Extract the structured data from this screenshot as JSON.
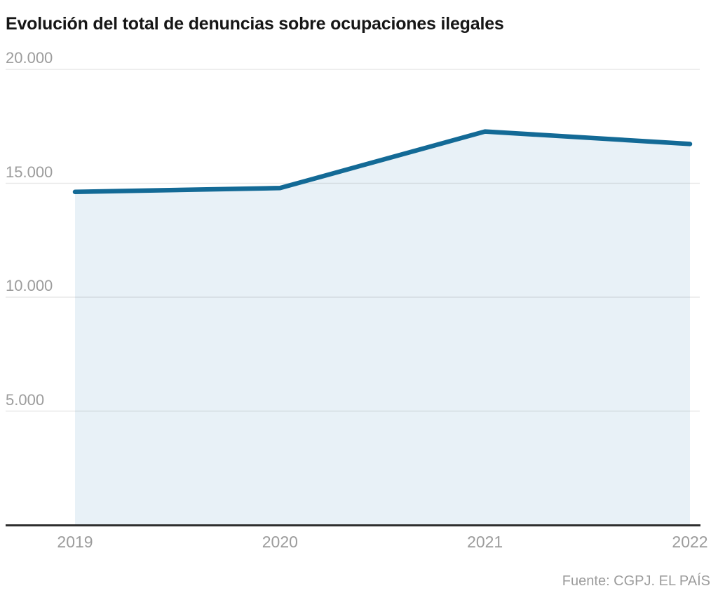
{
  "title": "Evolución del total de denuncias sobre ocupaciones ilegales",
  "source": "Fuente: CGPJ. EL PAÍS",
  "colors": {
    "line": "#136a96",
    "area_fill": "#e8f1f7",
    "grid_line": "rgba(0,0,0,0.09)",
    "axis_line": "#2e2e2e",
    "tick_text": "#9c9c9c",
    "title_text": "#161616"
  },
  "chart_data": {
    "type": "area",
    "title": "Evolución del total de denuncias sobre ocupaciones ilegales",
    "x": [
      2019,
      2020,
      2021,
      2022
    ],
    "xtick_labels": [
      "2019",
      "2020",
      "2021",
      "2022"
    ],
    "values": [
      14621,
      14792,
      17274,
      16726
    ],
    "series_name": "Total de denuncias sobre ocupaciones ilegales",
    "xlabel": "",
    "ylabel": "",
    "ylim": [
      0,
      20000
    ],
    "yticks": [
      {
        "value": 20000,
        "label": "20.000"
      },
      {
        "value": 15000,
        "label": "15.000"
      },
      {
        "value": 10000,
        "label": "10.000"
      },
      {
        "value": 5000,
        "label": "5.000"
      }
    ],
    "grid": true,
    "legend": false,
    "source": "Fuente: CGPJ. EL PAÍS"
  }
}
